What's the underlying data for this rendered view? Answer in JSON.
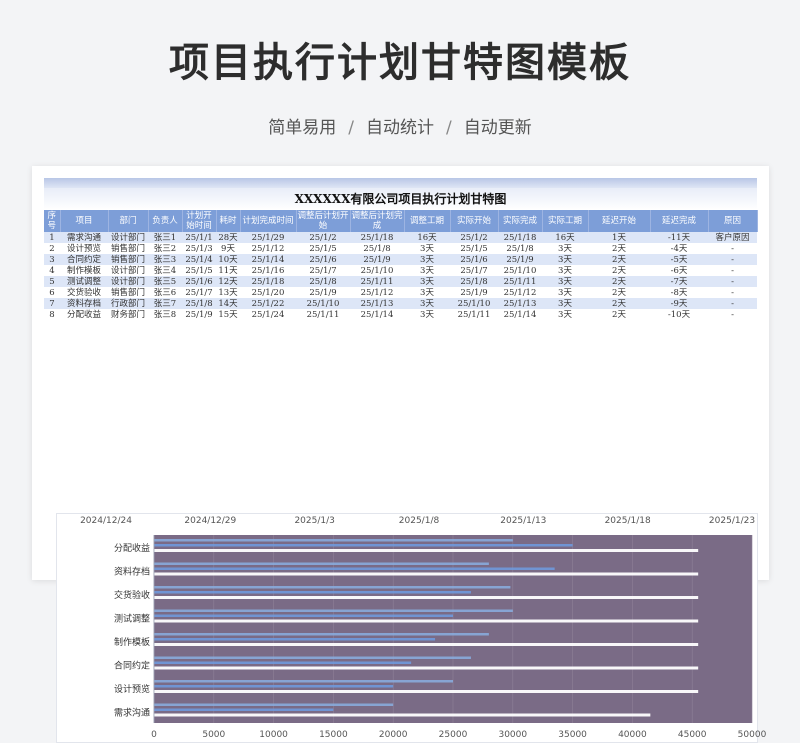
{
  "header": {
    "title": "项目执行计划甘特图模板",
    "subtitle_items": [
      "简单易用",
      "自动统计",
      "自动更新"
    ],
    "separator": "/"
  },
  "sheet": {
    "title": "XXXXXX有限公司项目执行计划甘特图",
    "columns": [
      "序号",
      "项目",
      "部门",
      "负责人",
      "计划开始时间",
      "耗时",
      "计划完成时间",
      "调整后计划开始",
      "调整后计划完成",
      "调整工期",
      "实际开始",
      "实际完成",
      "实际工期",
      "延迟开始",
      "延迟完成",
      "原因"
    ],
    "rows": [
      [
        "1",
        "需求沟通",
        "设计部门",
        "张三1",
        "25/1/1",
        "28天",
        "25/1/29",
        "25/1/2",
        "25/1/18",
        "16天",
        "25/1/2",
        "25/1/18",
        "16天",
        "1天",
        "-11天",
        "客户原因"
      ],
      [
        "2",
        "设计预览",
        "销售部门",
        "张三2",
        "25/1/3",
        "9天",
        "25/1/12",
        "25/1/5",
        "25/1/8",
        "3天",
        "25/1/5",
        "25/1/8",
        "3天",
        "2天",
        "-4天",
        "-"
      ],
      [
        "3",
        "合同约定",
        "销售部门",
        "张三3",
        "25/1/4",
        "10天",
        "25/1/14",
        "25/1/6",
        "25/1/9",
        "3天",
        "25/1/6",
        "25/1/9",
        "3天",
        "2天",
        "-5天",
        "-"
      ],
      [
        "4",
        "制作模板",
        "设计部门",
        "张三4",
        "25/1/5",
        "11天",
        "25/1/16",
        "25/1/7",
        "25/1/10",
        "3天",
        "25/1/7",
        "25/1/10",
        "3天",
        "2天",
        "-6天",
        "-"
      ],
      [
        "5",
        "测试调整",
        "设计部门",
        "张三5",
        "25/1/6",
        "12天",
        "25/1/18",
        "25/1/8",
        "25/1/11",
        "3天",
        "25/1/8",
        "25/1/11",
        "3天",
        "2天",
        "-7天",
        "-"
      ],
      [
        "6",
        "交货验收",
        "销售部门",
        "张三6",
        "25/1/7",
        "13天",
        "25/1/20",
        "25/1/9",
        "25/1/12",
        "3天",
        "25/1/9",
        "25/1/12",
        "3天",
        "2天",
        "-8天",
        "-"
      ],
      [
        "7",
        "资料存档",
        "行政部门",
        "张三7",
        "25/1/8",
        "14天",
        "25/1/22",
        "25/1/10",
        "25/1/13",
        "3天",
        "25/1/10",
        "25/1/13",
        "3天",
        "2天",
        "-9天",
        "-"
      ],
      [
        "8",
        "分配收益",
        "财务部门",
        "张三8",
        "25/1/9",
        "15天",
        "25/1/24",
        "25/1/11",
        "25/1/14",
        "3天",
        "25/1/11",
        "25/1/14",
        "3天",
        "2天",
        "-10天",
        "-"
      ]
    ]
  },
  "chart_data": {
    "type": "bar",
    "orientation": "horizontal",
    "categories": [
      "分配收益",
      "资料存档",
      "交货验收",
      "测试调整",
      "制作模板",
      "合同约定",
      "设计预览",
      "需求沟通"
    ],
    "x_bottom_ticks": [
      0,
      5000,
      10000,
      15000,
      20000,
      25000,
      30000,
      35000,
      40000,
      45000,
      50000
    ],
    "x_top_ticks": [
      "2024/12/24",
      "2024/12/29",
      "2025/1/3",
      "2025/1/8",
      "2025/1/13",
      "2025/1/18",
      "2025/1/23"
    ],
    "xlim": [
      0,
      50000
    ],
    "background_value": 50000,
    "series": [
      {
        "values": [
          30000,
          28000,
          29800,
          30000,
          28000,
          26500,
          25000,
          20000
        ],
        "color": "#8aaee0"
      },
      {
        "values": [
          35000,
          33500,
          26500,
          25000,
          23500,
          21500,
          20000,
          15000
        ],
        "color": "#6f9be0"
      },
      {
        "values": [
          45500,
          45500,
          45500,
          45500,
          45500,
          45500,
          45500,
          41500
        ],
        "color": "#ffffff"
      }
    ],
    "grid": true,
    "colors": {
      "plot_bg": "#7a6b86",
      "axis_text": "#555555",
      "category_text": "#333333"
    }
  }
}
